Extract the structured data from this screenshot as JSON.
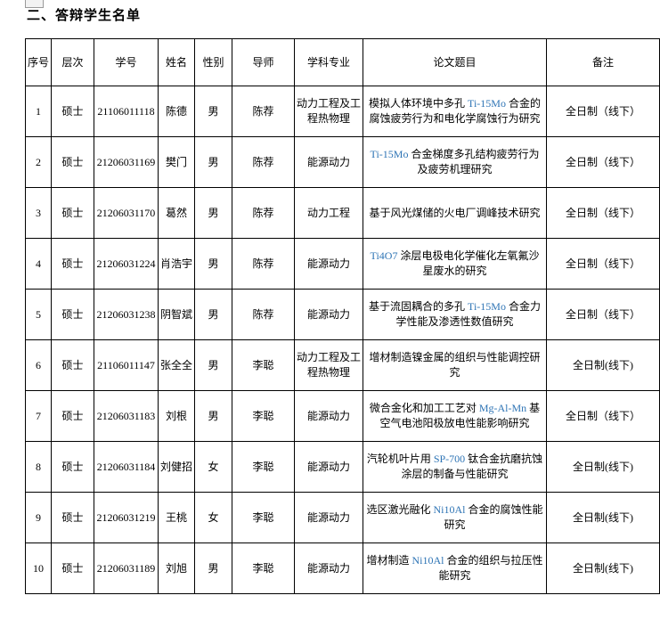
{
  "page": {
    "title": "二、答辩学生名单"
  },
  "colors": {
    "text": "#000000",
    "border": "#000000",
    "alloy_accent_blue": "#2e74b5"
  },
  "table": {
    "headers": [
      {
        "key": "index",
        "label": "序号"
      },
      {
        "key": "level",
        "label": "层次"
      },
      {
        "key": "student-id",
        "label": "学号"
      },
      {
        "key": "name",
        "label": "姓名"
      },
      {
        "key": "gender",
        "label": "性别"
      },
      {
        "key": "advisor",
        "label": "导师"
      },
      {
        "key": "major",
        "label": "学科专业"
      },
      {
        "key": "thesis",
        "label": "论文题目"
      },
      {
        "key": "remark",
        "label": "备注"
      }
    ],
    "rows": [
      {
        "index": "1",
        "level": "硕士",
        "student_id": "21106011118",
        "name": "陈德",
        "gender": "男",
        "advisor": "陈荐",
        "major": "动力工程及工程热物理",
        "thesis_parts": [
          {
            "text": "模拟人体环境中多孔 "
          },
          {
            "text": "Ti-15Mo",
            "accent": true
          },
          {
            "text": " 合金的腐蚀疲劳行为和电化学腐蚀行为研究"
          }
        ],
        "remark": "全日制（线下）"
      },
      {
        "index": "2",
        "level": "硕士",
        "student_id": "21206031169",
        "name": "樊门",
        "gender": "男",
        "advisor": "陈荐",
        "major": "能源动力",
        "thesis_parts": [
          {
            "text": "Ti-15Mo",
            "accent": true
          },
          {
            "text": " 合金梯度多孔结构疲劳行为及疲劳机理研究"
          }
        ],
        "remark": "全日制（线下）"
      },
      {
        "index": "3",
        "level": "硕士",
        "student_id": "21206031170",
        "name": "葛然",
        "gender": "男",
        "advisor": "陈荐",
        "major": "动力工程",
        "thesis_parts": [
          {
            "text": "基于风光煤储的火电厂调峰技术研究"
          }
        ],
        "remark": "全日制（线下）"
      },
      {
        "index": "4",
        "level": "硕士",
        "student_id": "21206031224",
        "name": "肖浩宇",
        "gender": "男",
        "advisor": "陈荐",
        "major": "能源动力",
        "thesis_parts": [
          {
            "text": "Ti4O7",
            "accent": true
          },
          {
            "text": " 涂层电极电化学催化左氧氟沙星废水的研究"
          }
        ],
        "remark": "全日制（线下）"
      },
      {
        "index": "5",
        "level": "硕士",
        "student_id": "21206031238",
        "name": "阴智斌",
        "gender": "男",
        "advisor": "陈荐",
        "major": "能源动力",
        "thesis_parts": [
          {
            "text": "基于流固耦合的多孔 "
          },
          {
            "text": "Ti-15Mo",
            "accent": true
          },
          {
            "text": " 合金力学性能及渗透性数值研究"
          }
        ],
        "remark": "全日制（线下）"
      },
      {
        "index": "6",
        "level": "硕士",
        "student_id": "21106011147",
        "name": "张全全",
        "gender": "男",
        "advisor": "李聪",
        "major": "动力工程及工程热物理",
        "thesis_parts": [
          {
            "text": "增材制造镍金属的组织与性能调控研究"
          }
        ],
        "remark": "全日制(线下)"
      },
      {
        "index": "7",
        "level": "硕士",
        "student_id": "21206031183",
        "name": "刘根",
        "gender": "男",
        "advisor": "李聪",
        "major": "能源动力",
        "thesis_parts": [
          {
            "text": "微合金化和加工工艺对 "
          },
          {
            "text": "Mg-Al-Mn",
            "accent": true
          },
          {
            "text": " 基空气电池阳极放电性能影响研究"
          }
        ],
        "remark": "全日制（线下）"
      },
      {
        "index": "8",
        "level": "硕士",
        "student_id": "21206031184",
        "name": "刘健招",
        "gender": "女",
        "advisor": "李聪",
        "major": "能源动力",
        "thesis_parts": [
          {
            "text": "汽轮机叶片用 "
          },
          {
            "text": "SP-700",
            "accent": true
          },
          {
            "text": " 钛合金抗磨抗蚀涂层的制备与性能研究"
          }
        ],
        "remark": "全日制(线下)"
      },
      {
        "index": "9",
        "level": "硕士",
        "student_id": "21206031219",
        "name": "王桃",
        "gender": "女",
        "advisor": "李聪",
        "major": "能源动力",
        "thesis_parts": [
          {
            "text": "选区激光融化 "
          },
          {
            "text": "Ni10Al",
            "accent": true
          },
          {
            "text": " 合金的腐蚀性能研究"
          }
        ],
        "remark": "全日制(线下)"
      },
      {
        "index": "10",
        "level": "硕士",
        "student_id": "21206031189",
        "name": "刘旭",
        "gender": "男",
        "advisor": "李聪",
        "major": "能源动力",
        "thesis_parts": [
          {
            "text": "增材制造 "
          },
          {
            "text": "Ni10Al",
            "accent": true
          },
          {
            "text": " 合金的组织与拉压性能研究"
          }
        ],
        "remark": "全日制(线下)"
      }
    ]
  }
}
